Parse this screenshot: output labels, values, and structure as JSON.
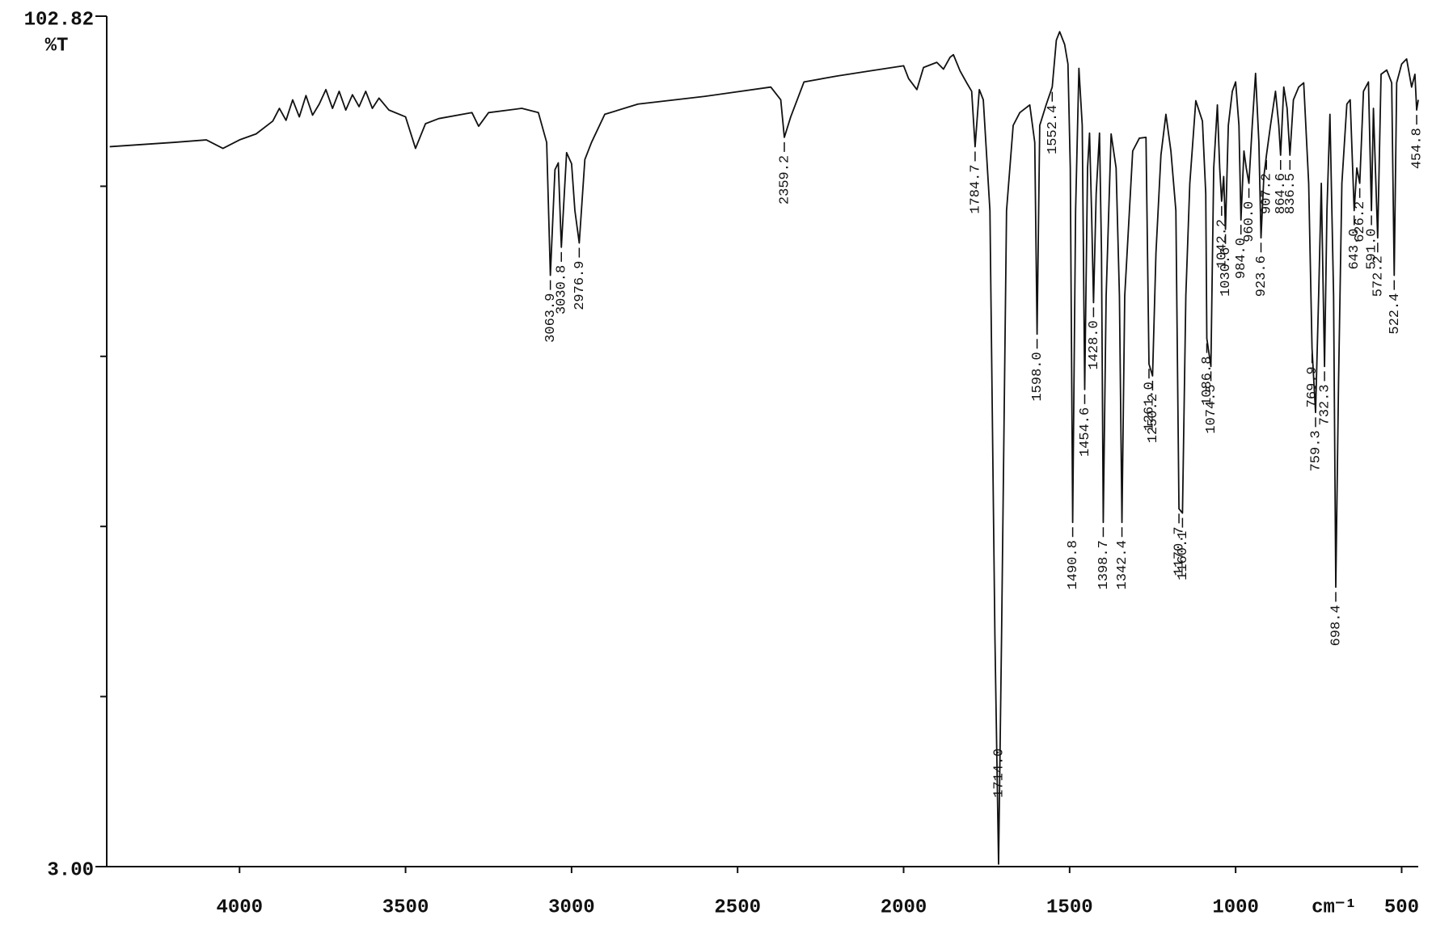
{
  "chart_data": {
    "type": "line",
    "ylabel": "%T",
    "xlabel": "cm⁻¹",
    "color": "#111111",
    "xlim": [
      4400,
      450
    ],
    "ylim": [
      3.0,
      102.82
    ],
    "xticks": [
      4000,
      3500,
      3000,
      2500,
      2000,
      1500,
      1000,
      500
    ],
    "yticks": [
      {
        "value": 3.0,
        "label": "3.00"
      },
      {
        "value": 102.82,
        "label": "102.82"
      }
    ],
    "yminor_ticks": [
      22.964,
      42.928,
      62.892,
      82.856
    ],
    "x": [
      4391,
      4200,
      4100,
      4050,
      4000,
      3950,
      3900,
      3880,
      3860,
      3840,
      3820,
      3800,
      3780,
      3760,
      3740,
      3720,
      3700,
      3680,
      3660,
      3640,
      3620,
      3600,
      3580,
      3550,
      3500,
      3470,
      3440,
      3400,
      3300,
      3280,
      3250,
      3150,
      3100,
      3075,
      3063.9,
      3050,
      3040,
      3030.8,
      3015,
      3000,
      2990,
      2976.9,
      2960,
      2940,
      2900,
      2800,
      2600,
      2400,
      2370,
      2359.2,
      2340,
      2300,
      2200,
      2100,
      2000,
      1985,
      1960,
      1940,
      1900,
      1880,
      1860,
      1850,
      1830,
      1810,
      1795,
      1784.7,
      1772,
      1760,
      1740,
      1725,
      1714,
      1705,
      1690,
      1670,
      1650,
      1620,
      1605,
      1598,
      1590,
      1570,
      1552.4,
      1540,
      1530,
      1515,
      1505,
      1498,
      1490.8,
      1482,
      1472,
      1462,
      1454.6,
      1446,
      1440,
      1434,
      1428,
      1420,
      1410,
      1404,
      1398.7,
      1390,
      1375,
      1360,
      1350,
      1342.4,
      1334,
      1310,
      1290,
      1270,
      1261,
      1250.2,
      1240,
      1225,
      1210,
      1195,
      1180,
      1170.7,
      1160.1,
      1150,
      1138,
      1120,
      1100,
      1090,
      1086.8,
      1074.5,
      1066,
      1055,
      1048,
      1042.2,
      1036,
      1030.6,
      1022,
      1010,
      1000,
      990,
      984,
      975,
      968,
      960,
      950,
      940,
      930,
      923.6,
      915,
      907.2,
      895,
      880,
      870,
      864.6,
      855,
      845,
      836.5,
      826,
      810,
      795,
      780,
      769.9,
      759.3,
      750,
      742,
      732.3,
      725,
      716,
      705,
      698.4,
      690,
      680,
      665,
      655,
      643,
      635,
      626.2,
      615,
      600,
      591,
      585,
      572.2,
      562,
      545,
      530,
      522.4,
      515,
      500,
      485,
      470,
      460,
      454.8,
      450
    ],
    "values": [
      87.5,
      88.0,
      88.3,
      87.3,
      88.3,
      89.0,
      90.5,
      92.0,
      90.6,
      93.0,
      91.0,
      93.5,
      91.2,
      92.5,
      94.2,
      92.0,
      94.0,
      91.8,
      93.6,
      92.2,
      94.0,
      92.0,
      93.2,
      91.8,
      91.0,
      87.3,
      90.2,
      90.8,
      91.5,
      89.9,
      91.5,
      92.0,
      91.5,
      88.0,
      72.4,
      84.8,
      85.6,
      75.7,
      86.8,
      85.5,
      80.0,
      76.2,
      86.0,
      88.0,
      91.3,
      92.5,
      93.4,
      94.5,
      93.0,
      88.6,
      91.0,
      95.1,
      95.8,
      96.4,
      97.0,
      95.5,
      94.2,
      96.8,
      97.4,
      96.6,
      98.0,
      98.3,
      96.4,
      95.0,
      94.0,
      87.5,
      94.2,
      93.0,
      80.0,
      30.0,
      3.3,
      30.0,
      80.0,
      90.0,
      91.5,
      92.4,
      88.0,
      65.5,
      90.0,
      92.5,
      94.5,
      100.0,
      101.0,
      99.5,
      97.2,
      85.0,
      43.4,
      80.0,
      96.7,
      90.0,
      59.0,
      85.0,
      89.1,
      80.0,
      69.2,
      82.0,
      89.1,
      75.0,
      43.4,
      70.0,
      89.0,
      85.0,
      70.0,
      43.4,
      70.0,
      87.0,
      88.5,
      88.6,
      62.0,
      60.6,
      75.0,
      86.5,
      91.3,
      87.0,
      80.0,
      45.0,
      44.5,
      70.0,
      83.2,
      92.9,
      90.5,
      82.0,
      65.0,
      61.7,
      85.0,
      92.4,
      85.0,
      81.1,
      84.0,
      77.8,
      90.0,
      94.0,
      95.1,
      90.0,
      78.9,
      87.0,
      85.0,
      83.2,
      90.0,
      96.1,
      88.0,
      76.8,
      84.0,
      86.5,
      90.0,
      94.0,
      90.0,
      86.5,
      94.5,
      92.0,
      86.5,
      93.0,
      94.5,
      95.0,
      83.2,
      63.8,
      56.3,
      70.0,
      83.2,
      61.7,
      80.0,
      91.3,
      70.0,
      35.8,
      60.0,
      83.2,
      92.5,
      93.0,
      80.0,
      85.0,
      83.2,
      94.0,
      95.1,
      80.0,
      92.0,
      76.8,
      96.0,
      96.5,
      95.0,
      72.4,
      95.0,
      97.2,
      97.8,
      94.5,
      96.0,
      91.8,
      93.0
    ],
    "annotations": [
      {
        "x": 3063.9,
        "text": "3063.9"
      },
      {
        "x": 3030.8,
        "text": "3030.8"
      },
      {
        "x": 2976.9,
        "text": "2976.9"
      },
      {
        "x": 2359.2,
        "text": "2359.2"
      },
      {
        "x": 1784.7,
        "text": "1784.7"
      },
      {
        "x": 1714,
        "text": "1714.0"
      },
      {
        "x": 1598,
        "text": "1598.0"
      },
      {
        "x": 1552.4,
        "text": "1552.4"
      },
      {
        "x": 1490.8,
        "text": "1490.8"
      },
      {
        "x": 1454.6,
        "text": "1454.6"
      },
      {
        "x": 1428,
        "text": "1428.0"
      },
      {
        "x": 1398.7,
        "text": "1398.7"
      },
      {
        "x": 1342.4,
        "text": "1342.4"
      },
      {
        "x": 1261,
        "text": "1261.0"
      },
      {
        "x": 1250.2,
        "text": "1250.2"
      },
      {
        "x": 1170.7,
        "text": "1170.7"
      },
      {
        "x": 1160.1,
        "text": "1160.1"
      },
      {
        "x": 1086.8,
        "text": "1086.8"
      },
      {
        "x": 1074.5,
        "text": "1074.5"
      },
      {
        "x": 1042.2,
        "text": "1042.2"
      },
      {
        "x": 1030.6,
        "text": "1030.6"
      },
      {
        "x": 984,
        "text": "984.0"
      },
      {
        "x": 960,
        "text": "960.0"
      },
      {
        "x": 923.6,
        "text": "923.6"
      },
      {
        "x": 907.2,
        "text": "907.2"
      },
      {
        "x": 864.6,
        "text": "864.6"
      },
      {
        "x": 836.5,
        "text": "836.5"
      },
      {
        "x": 769.9,
        "text": "769.9"
      },
      {
        "x": 759.3,
        "text": "759.3"
      },
      {
        "x": 732.3,
        "text": "732.3"
      },
      {
        "x": 698.4,
        "text": "698.4"
      },
      {
        "x": 643,
        "text": "643.0"
      },
      {
        "x": 626.2,
        "text": "626.2"
      },
      {
        "x": 591,
        "text": "591.0"
      },
      {
        "x": 572.2,
        "text": "572.2"
      },
      {
        "x": 522.4,
        "text": "522.4"
      },
      {
        "x": 454.8,
        "text": "454.8"
      }
    ]
  }
}
